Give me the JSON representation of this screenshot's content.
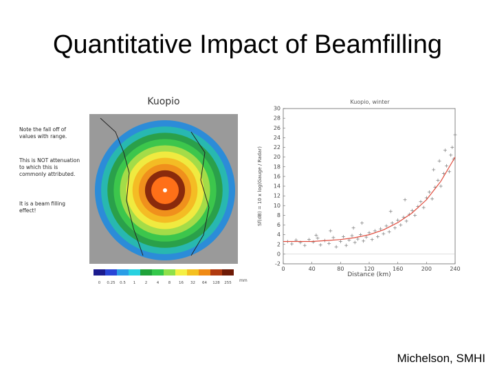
{
  "slide": {
    "title": "Quantitative Impact of Beamfilling",
    "notes": [
      "Note the fall off of values with range.",
      "This is NOT attenuation to which this is commonly attributed.",
      "It is a beam filling effect!"
    ],
    "credit": "Michelson, SMHI"
  },
  "radar_map": {
    "title": "Kuopio",
    "scale_labels": [
      "0",
      "0.25",
      "0.5",
      "1",
      "2",
      "4",
      "8",
      "16",
      "32",
      "64",
      "128",
      "255"
    ],
    "scale_unit": "mm",
    "scale_colors": [
      "#1b1b8e",
      "#2845d6",
      "#2a9de6",
      "#28d1e0",
      "#1fa23a",
      "#34c84a",
      "#8fe04a",
      "#f4f044",
      "#f4c020",
      "#f08a14",
      "#b03a10",
      "#6e1a06"
    ],
    "ring_colors": [
      "#2c8cd8",
      "#28b8b0",
      "#2aa04a",
      "#3cc64c",
      "#a4dc48",
      "#f0ea40",
      "#f4bc24",
      "#f0901c",
      "#8a2a0c",
      "#ff7018"
    ]
  },
  "chart_data": {
    "type": "scatter",
    "title": "Kuopio, winter",
    "xlabel": "Distance (km)",
    "ylabel": "Sf(dB) = 10 x log(Gauge / Radar)",
    "xlim": [
      0,
      240
    ],
    "ylim": [
      -2,
      30
    ],
    "x_ticks": [
      0,
      40,
      80,
      120,
      160,
      200,
      240
    ],
    "y_ticks": [
      -2,
      0,
      2,
      4,
      6,
      8,
      10,
      12,
      14,
      16,
      18,
      20,
      22,
      24,
      26,
      28,
      30
    ],
    "points": [
      [
        6,
        2.6
      ],
      [
        12,
        2.1
      ],
      [
        18,
        2.9
      ],
      [
        24,
        2.4
      ],
      [
        30,
        1.8
      ],
      [
        36,
        3.0
      ],
      [
        42,
        2.5
      ],
      [
        48,
        3.3
      ],
      [
        52,
        1.9
      ],
      [
        58,
        2.8
      ],
      [
        64,
        2.2
      ],
      [
        70,
        3.4
      ],
      [
        74,
        1.5
      ],
      [
        80,
        2.6
      ],
      [
        84,
        3.6
      ],
      [
        88,
        1.8
      ],
      [
        92,
        2.9
      ],
      [
        96,
        3.8
      ],
      [
        100,
        2.4
      ],
      [
        104,
        3.1
      ],
      [
        108,
        4.0
      ],
      [
        112,
        2.7
      ],
      [
        116,
        3.5
      ],
      [
        120,
        4.4
      ],
      [
        124,
        3.0
      ],
      [
        128,
        4.8
      ],
      [
        132,
        3.6
      ],
      [
        136,
        5.2
      ],
      [
        140,
        4.2
      ],
      [
        144,
        5.8
      ],
      [
        148,
        4.6
      ],
      [
        152,
        6.4
      ],
      [
        156,
        5.4
      ],
      [
        160,
        7.0
      ],
      [
        164,
        6.0
      ],
      [
        168,
        7.6
      ],
      [
        172,
        6.8
      ],
      [
        176,
        8.2
      ],
      [
        180,
        9.0
      ],
      [
        184,
        8.0
      ],
      [
        188,
        9.8
      ],
      [
        192,
        10.8
      ],
      [
        196,
        9.6
      ],
      [
        200,
        11.6
      ],
      [
        204,
        12.8
      ],
      [
        208,
        11.4
      ],
      [
        212,
        13.8
      ],
      [
        216,
        15.2
      ],
      [
        220,
        14.0
      ],
      [
        224,
        16.6
      ],
      [
        228,
        18.2
      ],
      [
        232,
        17.0
      ],
      [
        234,
        20.4
      ],
      [
        236,
        22.0
      ],
      [
        238,
        19.6
      ],
      [
        240,
        24.6
      ],
      [
        226,
        21.4
      ],
      [
        218,
        19.2
      ],
      [
        210,
        17.4
      ],
      [
        150,
        8.8
      ],
      [
        170,
        11.2
      ],
      [
        110,
        6.4
      ],
      [
        98,
        5.4
      ],
      [
        66,
        4.8
      ],
      [
        46,
        3.9
      ]
    ],
    "fit_curve": [
      [
        0,
        2.6
      ],
      [
        40,
        2.6
      ],
      [
        60,
        2.8
      ],
      [
        80,
        3.0
      ],
      [
        100,
        3.4
      ],
      [
        120,
        4.0
      ],
      [
        140,
        5.0
      ],
      [
        160,
        6.5
      ],
      [
        180,
        8.5
      ],
      [
        200,
        11.2
      ],
      [
        220,
        15.0
      ],
      [
        240,
        20.0
      ]
    ],
    "fit_color": "#e04b3c",
    "point_color": "#777777"
  }
}
